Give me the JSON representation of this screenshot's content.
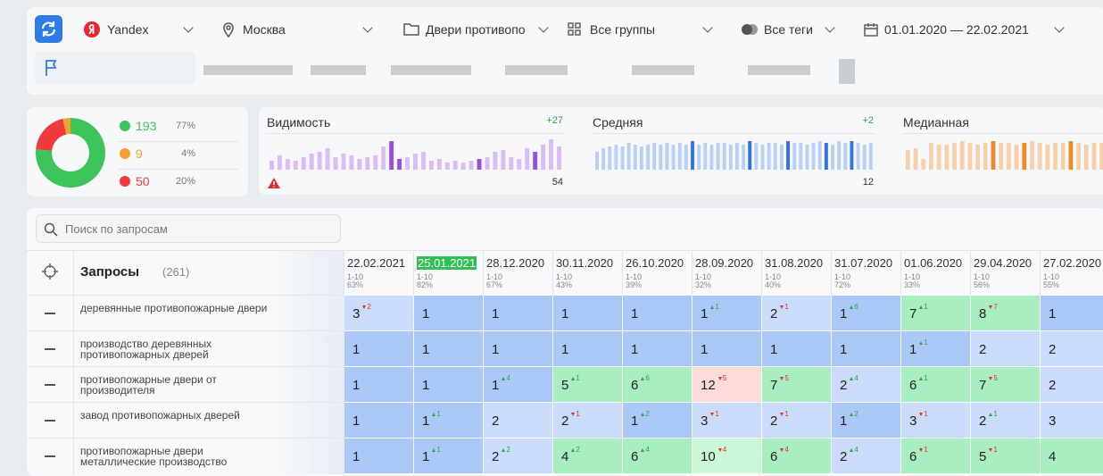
{
  "toolbar": {
    "engine": "Yandex",
    "region": "Москва",
    "project": "Двери противопо",
    "groups": "Все группы",
    "tags": "Все теги",
    "period": "01.01.2020 — 22.02.2021"
  },
  "summary": [
    {
      "count": 193,
      "share": "77%",
      "trend": "up",
      "color": "#3cc35a"
    },
    {
      "count": 9,
      "share": "4%",
      "trend": "flat",
      "color": "#f5a030"
    },
    {
      "count": 50,
      "share": "20%",
      "trend": "down",
      "color": "#ef3b3b"
    }
  ],
  "sparklines": [
    {
      "title": "Видимость",
      "delta": "+27",
      "last": 54,
      "color": "#dcbcf5",
      "accent_color": "#9a4fe0",
      "ylim": [
        0,
        40
      ],
      "accent": [
        15,
        16,
        26,
        33,
        37
      ],
      "values": [
        10,
        16,
        12,
        10,
        14,
        18,
        20,
        24,
        14,
        18,
        16,
        12,
        14,
        16,
        26,
        32,
        12,
        14,
        18,
        20,
        10,
        12,
        8,
        10,
        8,
        10,
        12,
        14,
        20,
        22,
        14,
        12,
        24,
        20,
        28,
        34,
        26
      ]
    },
    {
      "title": "Средняя",
      "delta": "+2",
      "last": 12,
      "color": "#b8d0f7",
      "accent_color": "#2f74e0",
      "ylim": [
        0,
        40
      ],
      "accent": [
        15,
        24,
        30,
        36,
        40
      ],
      "values": [
        20,
        24,
        26,
        28,
        26,
        30,
        28,
        26,
        28,
        30,
        28,
        30,
        28,
        30,
        28,
        32,
        28,
        30,
        28,
        30,
        30,
        28,
        30,
        28,
        32,
        30,
        28,
        30,
        30,
        28,
        32,
        30,
        30,
        28,
        30,
        32,
        30,
        28,
        32,
        30,
        32,
        30,
        28,
        30
      ]
    },
    {
      "title": "Медианная",
      "color": "#f7cfaa",
      "accent_color": "#ee8a28",
      "ylim": [
        0,
        40
      ],
      "accent": [
        11,
        15,
        21
      ],
      "values": [
        22,
        24,
        12,
        30,
        28,
        28,
        30,
        32,
        30,
        28,
        30,
        32,
        30,
        30,
        28,
        30,
        32,
        30,
        28,
        30,
        30,
        32,
        30,
        28,
        30,
        30
      ]
    }
  ],
  "table": {
    "search_placeholder": "Поиск по запросам",
    "header": "Запросы",
    "count": "(261)",
    "color_scale": [
      {
        "max": 1,
        "color": "#abc7f5"
      },
      {
        "max": 3,
        "color": "#cadcfa"
      },
      {
        "max": 9,
        "color": "#a8eec0"
      },
      {
        "max": 11,
        "color": "#cbf6d8"
      },
      {
        "max": 100,
        "color": "#fbdada"
      }
    ],
    "columns": [
      {
        "date": "22.02.2021",
        "range": "1-10",
        "share": "63%"
      },
      {
        "date": "25.01.2021",
        "range": "1-10",
        "share": "82%",
        "highlight": true
      },
      {
        "date": "28.12.2020",
        "range": "1-10",
        "share": "67%"
      },
      {
        "date": "30.11.2020",
        "range": "1-10",
        "share": "43%"
      },
      {
        "date": "26.10.2020",
        "range": "1-10",
        "share": "39%"
      },
      {
        "date": "28.09.2020",
        "range": "1-10",
        "share": "32%"
      },
      {
        "date": "31.08.2020",
        "range": "1-10",
        "share": "40%"
      },
      {
        "date": "31.07.2020",
        "range": "1-10",
        "share": "72%"
      },
      {
        "date": "01.06.2020",
        "range": "1-10",
        "share": "33%"
      },
      {
        "date": "29.04.2020",
        "range": "1-10",
        "share": "56%"
      },
      {
        "date": "27.02.2020",
        "range": "1-10",
        "share": "55%"
      }
    ],
    "rows": [
      {
        "query": "деревянные противопожарные двери",
        "cells": [
          {
            "v": 3,
            "d": 2,
            "t": "down"
          },
          {
            "v": 1
          },
          {
            "v": 1
          },
          {
            "v": 1
          },
          {
            "v": 1
          },
          {
            "v": 1,
            "d": 1,
            "t": "up"
          },
          {
            "v": 2,
            "d": 1,
            "t": "down"
          },
          {
            "v": 1,
            "d": 6,
            "t": "up"
          },
          {
            "v": 7,
            "d": 1,
            "t": "up"
          },
          {
            "v": 8,
            "d": 7,
            "t": "down"
          },
          {
            "v": 1
          }
        ]
      },
      {
        "query": "производство деревянных противопожарных дверей",
        "cells": [
          {
            "v": 1
          },
          {
            "v": 1
          },
          {
            "v": 1
          },
          {
            "v": 1
          },
          {
            "v": 1
          },
          {
            "v": 1
          },
          {
            "v": 1
          },
          {
            "v": 1
          },
          {
            "v": 1,
            "d": 1,
            "t": "up"
          },
          {
            "v": 2
          },
          {
            "v": 2
          }
        ]
      },
      {
        "query": "противопожарные двери от производителя",
        "cells": [
          {
            "v": 1
          },
          {
            "v": 1
          },
          {
            "v": 1,
            "d": 4,
            "t": "up"
          },
          {
            "v": 5,
            "d": 1,
            "t": "up"
          },
          {
            "v": 6,
            "d": 6,
            "t": "up"
          },
          {
            "v": 12,
            "d": 5,
            "t": "down"
          },
          {
            "v": 7,
            "d": 5,
            "t": "down"
          },
          {
            "v": 2,
            "d": 4,
            "t": "up"
          },
          {
            "v": 6,
            "d": 1,
            "t": "up"
          },
          {
            "v": 7,
            "d": 5,
            "t": "down"
          },
          {
            "v": 2
          }
        ]
      },
      {
        "query": "завод противопожарных дверей",
        "cells": [
          {
            "v": 1
          },
          {
            "v": 1,
            "d": 1,
            "t": "up"
          },
          {
            "v": 2
          },
          {
            "v": 2,
            "d": 1,
            "t": "down"
          },
          {
            "v": 1,
            "d": 2,
            "t": "up"
          },
          {
            "v": 3,
            "d": 1,
            "t": "down"
          },
          {
            "v": 2,
            "d": 1,
            "t": "down"
          },
          {
            "v": 1,
            "d": 2,
            "t": "up"
          },
          {
            "v": 3,
            "d": 1,
            "t": "down"
          },
          {
            "v": 2,
            "d": 1,
            "t": "up"
          },
          {
            "v": 3
          }
        ]
      },
      {
        "query": "противопожарные двери металлические производство",
        "cells": [
          {
            "v": 1
          },
          {
            "v": 1,
            "d": 1,
            "t": "up"
          },
          {
            "v": 2,
            "d": 2,
            "t": "up"
          },
          {
            "v": 4,
            "d": 2,
            "t": "up"
          },
          {
            "v": 6,
            "d": 4,
            "t": "up"
          },
          {
            "v": 10,
            "d": 4,
            "t": "down"
          },
          {
            "v": 6,
            "d": 4,
            "t": "down"
          },
          {
            "v": 2,
            "d": 4,
            "t": "up"
          },
          {
            "v": 6,
            "d": 1,
            "t": "down"
          },
          {
            "v": 5,
            "d": 1,
            "t": "down"
          },
          {
            "v": 4
          }
        ]
      }
    ]
  }
}
